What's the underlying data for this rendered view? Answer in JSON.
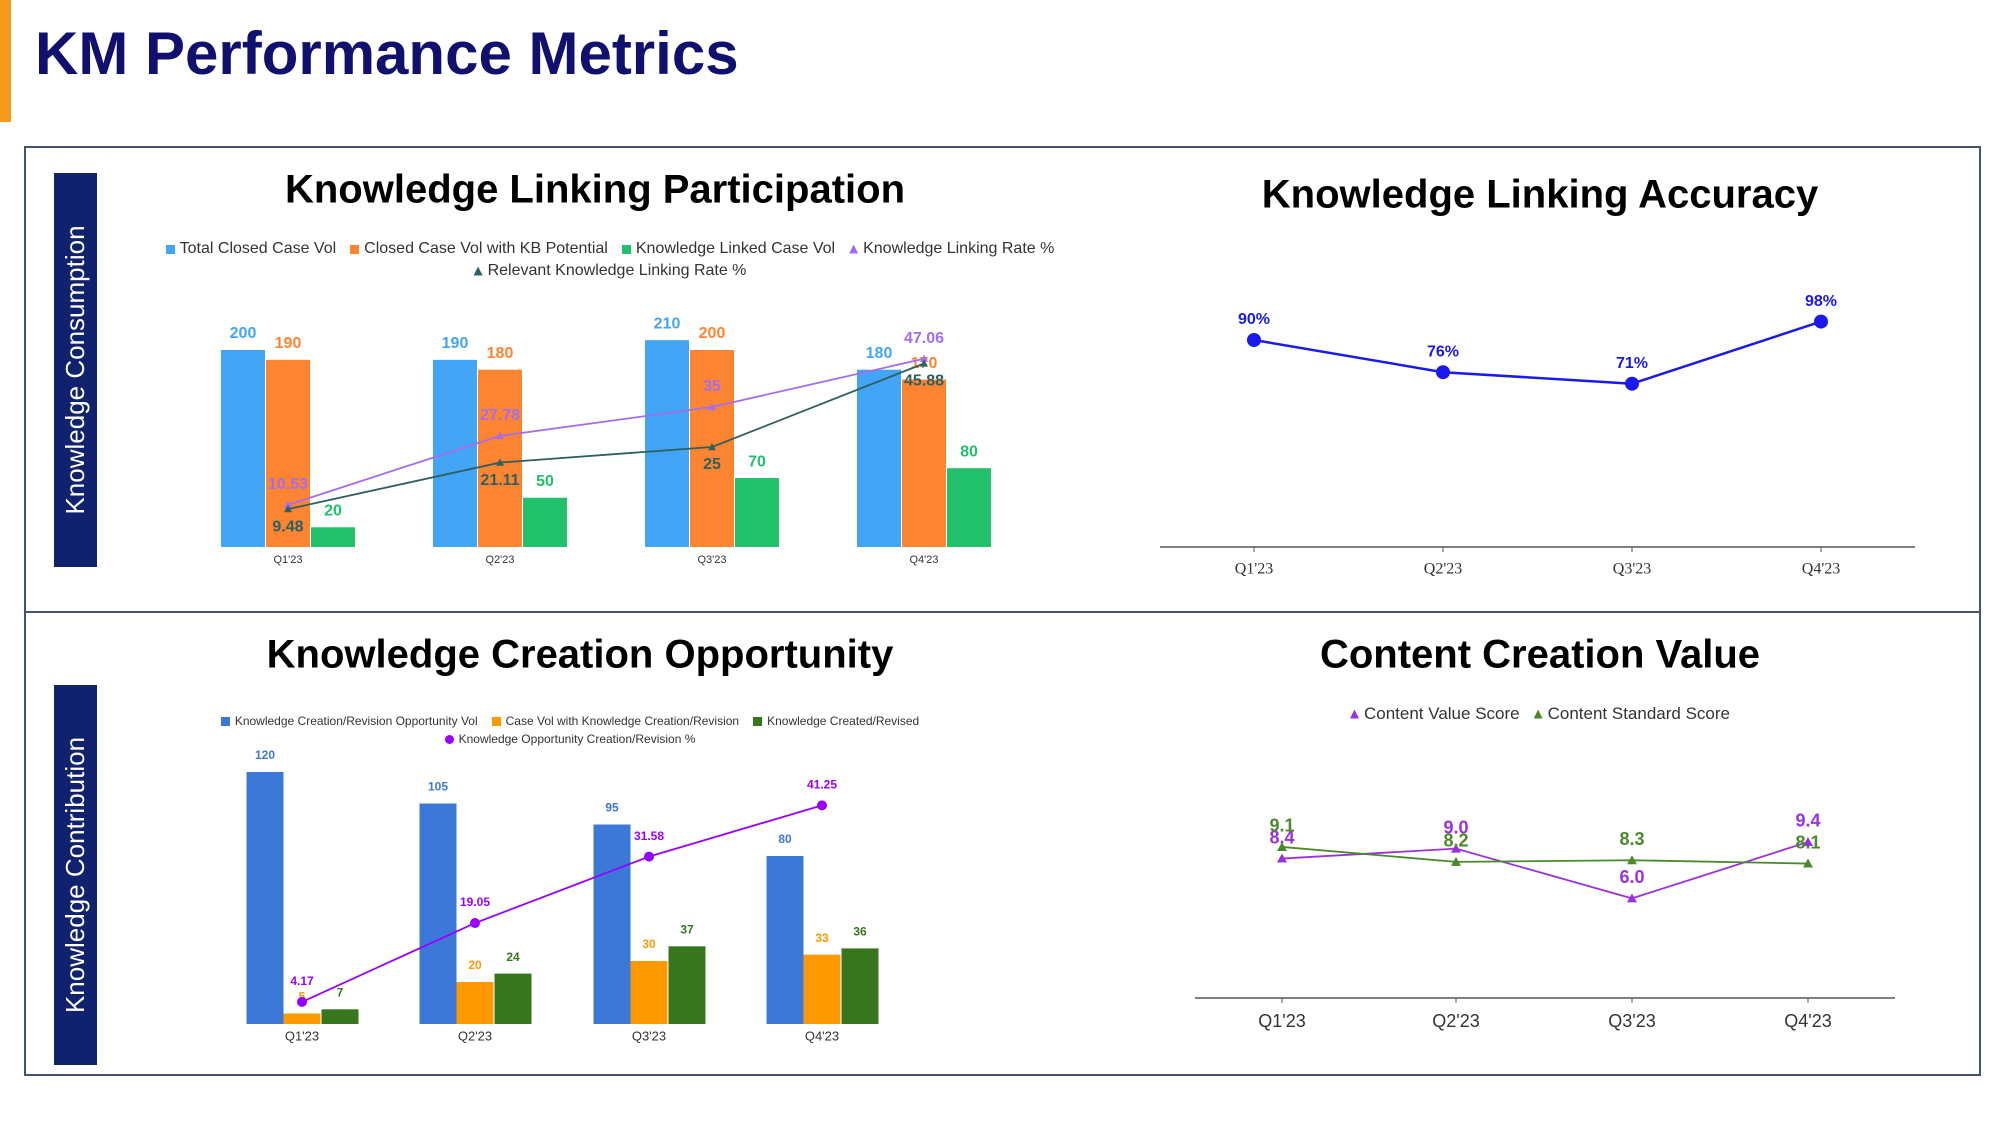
{
  "header": {
    "title": "KM Performance Metrics"
  },
  "sections": [
    "Knowledge Consumption",
    "Knowledge Contribution"
  ],
  "chart_data": [
    {
      "type": "combo",
      "title": "Knowledge Linking Participation",
      "categories": [
        "Q1'23",
        "Q2'23",
        "Q3'23",
        "Q4'23"
      ],
      "series": [
        {
          "name": "Total Closed Case Vol",
          "type": "bar",
          "color": "#42a5f5",
          "values": [
            200,
            190,
            210,
            180
          ]
        },
        {
          "name": "Closed Case Vol with KB Potential",
          "type": "bar",
          "color": "#fd8532",
          "values": [
            190,
            180,
            200,
            170
          ]
        },
        {
          "name": "Knowledge Linked Case Vol",
          "type": "bar",
          "color": "#21c06a",
          "values": [
            20,
            50,
            70,
            80
          ]
        },
        {
          "name": "Knowledge Linking Rate %",
          "type": "line",
          "marker": "triangle",
          "color": "#a56cf0",
          "values": [
            10.53,
            27.78,
            35,
            47.06
          ]
        },
        {
          "name": "Relevant Knowledge Linking Rate %",
          "type": "line",
          "marker": "triangle",
          "color": "#2f5f5f",
          "values": [
            9.48,
            21.11,
            25,
            45.88
          ]
        }
      ]
    },
    {
      "type": "line",
      "title": "Knowledge Linking Accuracy",
      "categories": [
        "Q1'23",
        "Q2'23",
        "Q3'23",
        "Q4'23"
      ],
      "color": "#1a1aee",
      "marker": "circle",
      "values": [
        90,
        76,
        71,
        98
      ],
      "value_labels": [
        "90%",
        "76%",
        "71%",
        "98%"
      ]
    },
    {
      "type": "combo",
      "title": "Knowledge Creation Opportunity",
      "categories": [
        "Q1'23",
        "Q2'23",
        "Q3'23",
        "Q4'23"
      ],
      "series": [
        {
          "name": "Knowledge Creation/Revision Opportunity Vol",
          "type": "bar",
          "color": "#3c78d8",
          "values": [
            120,
            105,
            95,
            80
          ]
        },
        {
          "name": "Case Vol with Knowledge Creation/Revision",
          "type": "bar",
          "color": "#ff9900",
          "values": [
            5,
            20,
            30,
            33
          ]
        },
        {
          "name": "Knowledge Created/Revised",
          "type": "bar",
          "color": "#38761d",
          "values": [
            7,
            24,
            37,
            36
          ]
        },
        {
          "name": "Knowledge Opportunity Creation/Revision %",
          "type": "line",
          "marker": "circle",
          "color": "#9900ff",
          "values": [
            4.17,
            19.05,
            31.58,
            41.25
          ]
        }
      ]
    },
    {
      "type": "line",
      "title": "Content Creation Value",
      "categories": [
        "Q1'23",
        "Q2'23",
        "Q3'23",
        "Q4'23"
      ],
      "series": [
        {
          "name": "Content Value Score",
          "marker": "triangle",
          "color": "#9b30e0",
          "values": [
            8.4,
            9.0,
            6.0,
            9.4
          ],
          "value_labels": [
            "8.4",
            "9.0",
            "6.0",
            "9.4"
          ]
        },
        {
          "name": "Content Standard Score",
          "marker": "triangle",
          "color": "#4b8a2a",
          "values": [
            9.1,
            8.2,
            8.3,
            8.1
          ]
        }
      ]
    }
  ]
}
